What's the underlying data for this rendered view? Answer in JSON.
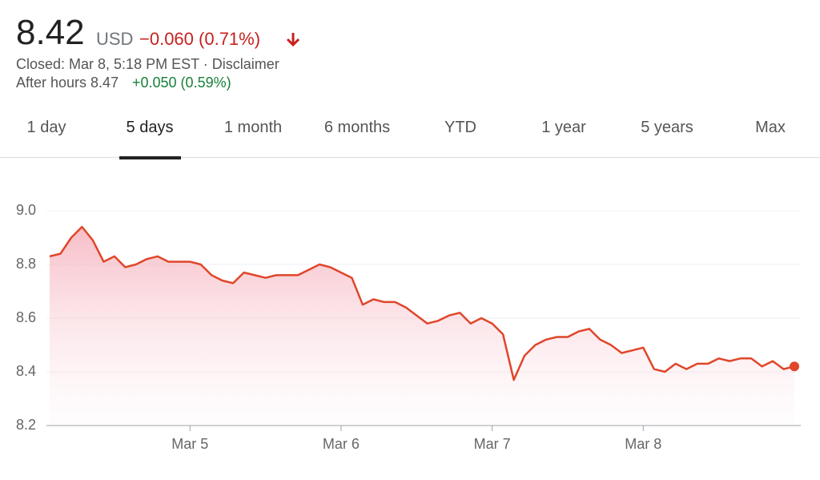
{
  "header": {
    "price": "8.42",
    "currency": "USD",
    "change": "−0.060 (0.71%)",
    "closed": "Closed: Mar 8, 5:18 PM EST · Disclaimer",
    "after_hours": "After hours 8.47",
    "after_hours_change": "+0.050 (0.59%)"
  },
  "tabs": [
    "1 day",
    "5 days",
    "1 month",
    "6 months",
    "YTD",
    "1 year",
    "5 years",
    "Max"
  ],
  "chart_data": {
    "type": "line",
    "color": "#e0462a",
    "categories": [
      null,
      null,
      null,
      null,
      null,
      null,
      null,
      null,
      null,
      null,
      null,
      null,
      null,
      "Mar 5",
      null,
      null,
      null,
      null,
      null,
      null,
      null,
      null,
      null,
      null,
      null,
      null,
      null,
      "Mar 6",
      null,
      null,
      null,
      null,
      null,
      null,
      null,
      null,
      null,
      null,
      null,
      null,
      null,
      "Mar 7",
      null,
      null,
      null,
      null,
      null,
      null,
      null,
      null,
      null,
      null,
      null,
      null,
      null,
      "Mar 8",
      null,
      null,
      null,
      null,
      null,
      null,
      null,
      null,
      null,
      null,
      null,
      null,
      null,
      null
    ],
    "values": [
      8.83,
      8.84,
      8.9,
      8.94,
      8.89,
      8.81,
      8.83,
      8.79,
      8.8,
      8.82,
      8.83,
      8.81,
      8.81,
      8.81,
      8.8,
      8.76,
      8.74,
      8.73,
      8.77,
      8.76,
      8.75,
      8.76,
      8.76,
      8.76,
      8.78,
      8.8,
      8.79,
      8.77,
      8.75,
      8.65,
      8.67,
      8.66,
      8.66,
      8.64,
      8.61,
      8.58,
      8.59,
      8.61,
      8.62,
      8.58,
      8.6,
      8.58,
      8.54,
      8.37,
      8.46,
      8.5,
      8.52,
      8.53,
      8.53,
      8.55,
      8.56,
      8.52,
      8.5,
      8.47,
      8.48,
      8.49,
      8.41,
      8.4,
      8.43,
      8.41,
      8.43,
      8.43,
      8.45,
      8.44,
      8.45,
      8.45,
      8.42,
      8.44,
      8.41,
      8.42
    ],
    "ylim": [
      8.2,
      9.0
    ],
    "yticks": [
      {
        "value": 9,
        "label": "9.0"
      },
      8.8,
      8.6,
      8.4,
      8.2
    ],
    "grid": true
  }
}
